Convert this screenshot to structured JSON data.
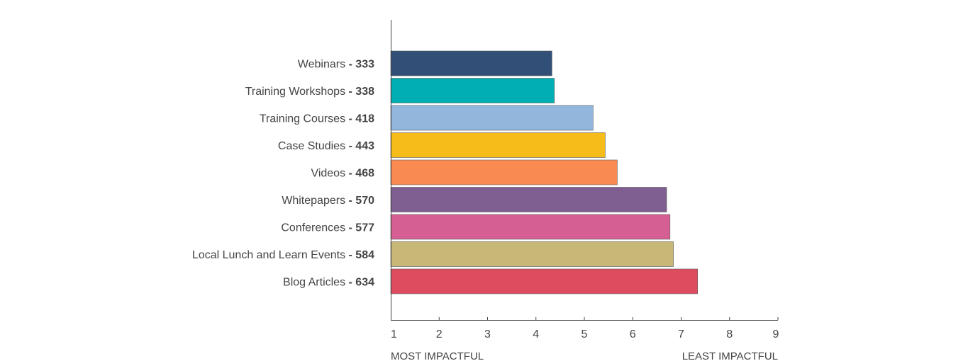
{
  "chart_data": {
    "type": "bar",
    "orientation": "horizontal",
    "categories": [
      "Webinars",
      "Training Workshops",
      "Training Courses",
      "Case Studies",
      "Videos",
      "Whitepapers",
      "Conferences",
      "Local Lunch and Learn Events",
      "Blog Articles"
    ],
    "category_counts": [
      "333",
      "338",
      "418",
      "443",
      "468",
      "570",
      "577",
      "584",
      "634"
    ],
    "values": [
      4.33,
      4.38,
      5.18,
      5.43,
      5.68,
      6.7,
      6.77,
      6.84,
      7.34
    ],
    "colors": [
      "#324f78",
      "#00aeb3",
      "#92b6dc",
      "#f5bc1a",
      "#f88a52",
      "#7f5e91",
      "#d55f92",
      "#c8b878",
      "#de4c5f"
    ],
    "xlim": [
      1,
      9
    ],
    "xticks": [
      "1",
      "2",
      "3",
      "4",
      "5",
      "6",
      "7",
      "8",
      "9"
    ],
    "xlabel_left": "MOST IMPACTFUL",
    "xlabel_right": "LEAST IMPACTFUL",
    "separator": " - ",
    "grid": false,
    "legend": "none"
  }
}
